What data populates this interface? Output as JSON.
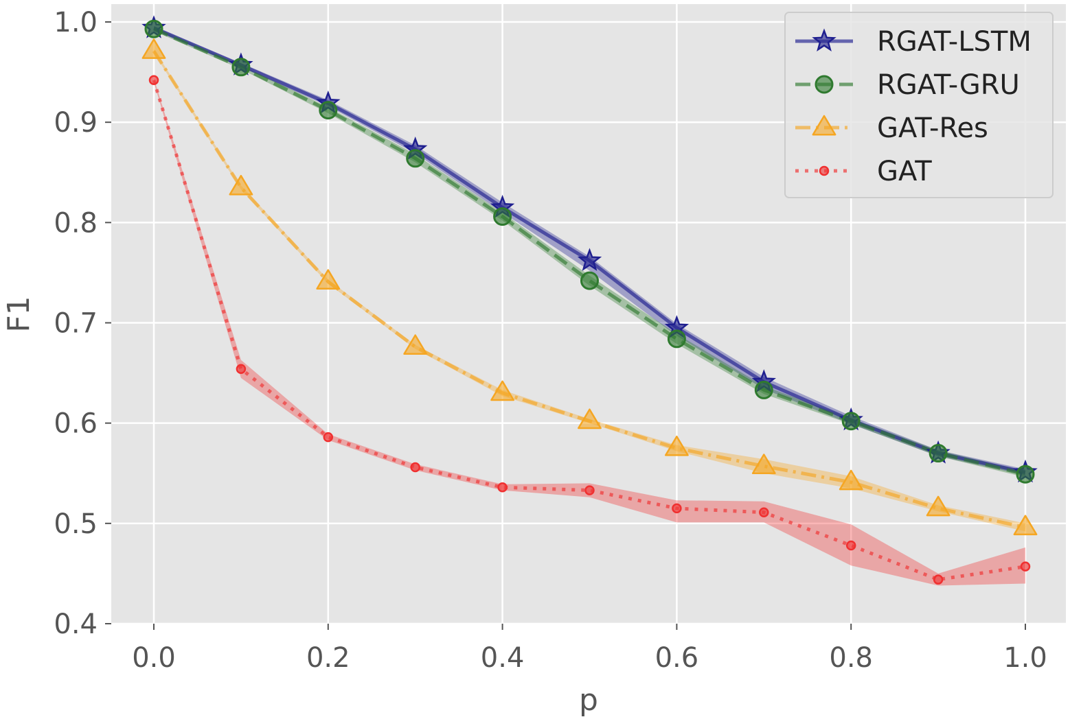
{
  "chart_data": {
    "type": "line",
    "title": "",
    "xlabel": "p",
    "ylabel": "F1",
    "xlim": [
      -0.05,
      1.05
    ],
    "ylim": [
      0.4,
      1.02
    ],
    "xticks": [
      0.0,
      0.2,
      0.4,
      0.6,
      0.8,
      1.0
    ],
    "xtick_labels": [
      "0.0",
      "0.2",
      "0.4",
      "0.6",
      "0.8",
      "1.0"
    ],
    "yticks": [
      0.4,
      0.5,
      0.6,
      0.7,
      0.8,
      0.9,
      1.0
    ],
    "ytick_labels": [
      "0.4",
      "0.5",
      "0.6",
      "0.7",
      "0.8",
      "0.9",
      "1.0"
    ],
    "grid": true,
    "legend_position": "top-right",
    "x": [
      0.0,
      0.1,
      0.2,
      0.3,
      0.4,
      0.5,
      0.6,
      0.7,
      0.8,
      0.9,
      1.0
    ],
    "series": [
      {
        "name": "RGAT-LSTM",
        "marker": "star",
        "linestyle": "solid",
        "color": "#1f1f8f",
        "values": [
          0.994,
          0.957,
          0.919,
          0.873,
          0.815,
          0.762,
          0.695,
          0.641,
          0.603,
          0.57,
          0.551
        ],
        "lower": [
          0.992,
          0.955,
          0.916,
          0.869,
          0.81,
          0.752,
          0.687,
          0.634,
          0.599,
          0.567,
          0.548
        ],
        "upper": [
          0.996,
          0.959,
          0.922,
          0.877,
          0.82,
          0.766,
          0.699,
          0.646,
          0.607,
          0.573,
          0.554
        ]
      },
      {
        "name": "RGAT-GRU",
        "marker": "circle",
        "linestyle": "dashed",
        "color": "#2f7a2f",
        "values": [
          0.993,
          0.955,
          0.912,
          0.864,
          0.806,
          0.742,
          0.684,
          0.633,
          0.602,
          0.57,
          0.549
        ],
        "lower": [
          0.991,
          0.953,
          0.909,
          0.86,
          0.802,
          0.737,
          0.679,
          0.629,
          0.599,
          0.567,
          0.546
        ],
        "upper": [
          0.995,
          0.957,
          0.915,
          0.868,
          0.81,
          0.747,
          0.689,
          0.637,
          0.605,
          0.573,
          0.552
        ]
      },
      {
        "name": "GAT-Res",
        "marker": "triangle",
        "linestyle": "dashdot",
        "color": "#f5a623",
        "values": [
          0.971,
          0.835,
          0.741,
          0.676,
          0.63,
          0.602,
          0.575,
          0.557,
          0.541,
          0.515,
          0.496
        ],
        "lower": [
          0.969,
          0.833,
          0.739,
          0.674,
          0.627,
          0.6,
          0.572,
          0.55,
          0.535,
          0.512,
          0.492
        ],
        "upper": [
          0.973,
          0.837,
          0.743,
          0.678,
          0.633,
          0.604,
          0.578,
          0.564,
          0.547,
          0.518,
          0.5
        ]
      },
      {
        "name": "GAT",
        "marker": "small-circle",
        "linestyle": "dotted",
        "color": "#f03030",
        "values": [
          0.942,
          0.654,
          0.586,
          0.556,
          0.536,
          0.533,
          0.515,
          0.511,
          0.478,
          0.444,
          0.457
        ],
        "lower": [
          0.94,
          0.645,
          0.583,
          0.553,
          0.533,
          0.526,
          0.501,
          0.501,
          0.458,
          0.438,
          0.44
        ],
        "upper": [
          0.944,
          0.663,
          0.589,
          0.559,
          0.539,
          0.54,
          0.523,
          0.522,
          0.499,
          0.45,
          0.476
        ]
      }
    ]
  }
}
